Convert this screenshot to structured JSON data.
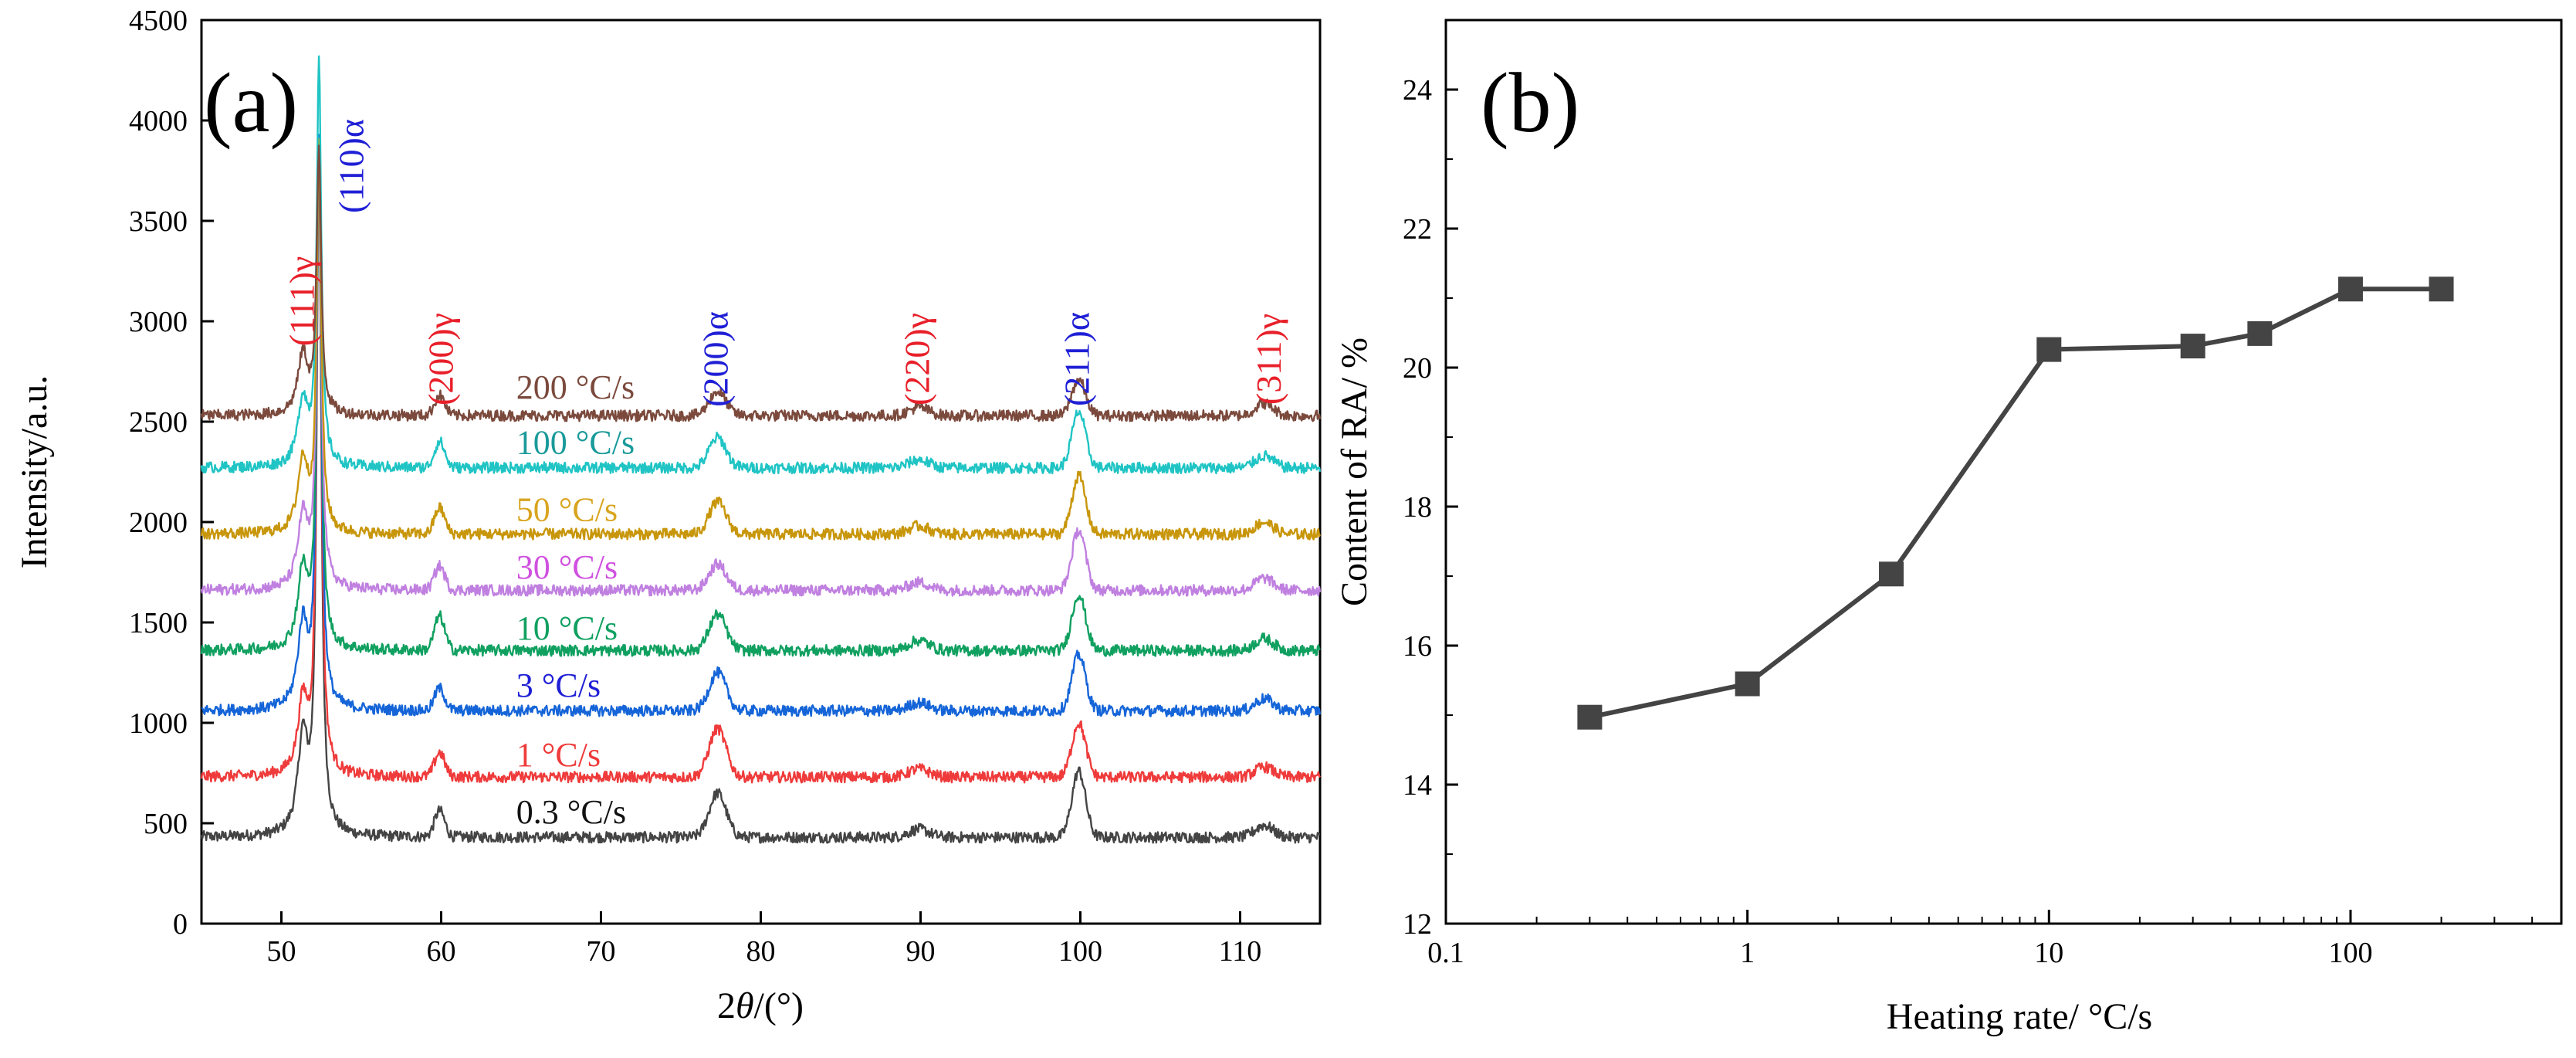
{
  "chart_data": [
    {
      "type": "line",
      "panel_label": "(a)",
      "xlabel_prefix": "2",
      "xlabel_symbol": "θ",
      "xlabel_suffix": "/(°)",
      "ylabel": "Intensity/a.u.",
      "xlim": [
        45,
        115
      ],
      "ylim": [
        0,
        4500
      ],
      "xticks": [
        50,
        60,
        70,
        80,
        90,
        100,
        110
      ],
      "yticks": [
        0,
        500,
        1000,
        1500,
        2000,
        2500,
        3000,
        3500,
        4000,
        4500
      ],
      "peak_labels": [
        {
          "text": "(111)γ",
          "x": 51.3,
          "color": "#e8202a"
        },
        {
          "text": "(110)α",
          "x": 54.4,
          "color": "#1f1fd6"
        },
        {
          "text": "(200)γ",
          "x": 60.0,
          "color": "#e8202a"
        },
        {
          "text": "(200)α",
          "x": 77.2,
          "color": "#1f1fd6"
        },
        {
          "text": "(220)γ",
          "x": 89.8,
          "color": "#e8202a"
        },
        {
          "text": "(211)α",
          "x": 99.8,
          "color": "#1f1fd6"
        },
        {
          "text": "(311)γ",
          "x": 111.8,
          "color": "#e8202a"
        }
      ],
      "series": [
        {
          "name": "0.3 °C/s",
          "baseline": 430,
          "color": "#444444",
          "label_color": "#111111",
          "peaks": {
            "g111": 480,
            "a110": 3400,
            "g200": 130,
            "a200": 220,
            "g220": 40,
            "a211": 330,
            "g311": 60
          }
        },
        {
          "name": "1 °C/s",
          "baseline": 730,
          "color": "#ef3b3b",
          "label_color": "#ef3b3b",
          "peaks": {
            "g111": 360,
            "a110": 3100,
            "g200": 120,
            "a200": 240,
            "g220": 40,
            "a211": 270,
            "g311": 50
          }
        },
        {
          "name": "3 °C/s",
          "baseline": 1060,
          "color": "#1565d8",
          "label_color": "#1f1fd6",
          "peaks": {
            "g111": 420,
            "a110": 2800,
            "g200": 110,
            "a200": 190,
            "g220": 40,
            "a211": 280,
            "g311": 60
          }
        },
        {
          "name": "10 °C/s",
          "baseline": 1360,
          "color": "#10a060",
          "label_color": "#10a060",
          "peaks": {
            "g111": 390,
            "a110": 2500,
            "g200": 170,
            "a200": 180,
            "g220": 50,
            "a211": 280,
            "g311": 60
          }
        },
        {
          "name": "30 °C/s",
          "baseline": 1660,
          "color": "#c080e0",
          "label_color": "#d050e0",
          "peaks": {
            "g111": 360,
            "a110": 2200,
            "g200": 120,
            "a200": 130,
            "g220": 40,
            "a211": 300,
            "g311": 60
          }
        },
        {
          "name": "50 °C/s",
          "baseline": 1940,
          "color": "#c8960a",
          "label_color": "#d9a520",
          "peaks": {
            "g111": 360,
            "a110": 1900,
            "g200": 130,
            "a200": 160,
            "g220": 40,
            "a211": 290,
            "g311": 60
          }
        },
        {
          "name": "100 °C/s",
          "baseline": 2270,
          "color": "#20c4c4",
          "label_color": "#1a9a9a",
          "peaks": {
            "g111": 330,
            "a110": 2000,
            "g200": 130,
            "a200": 150,
            "g220": 40,
            "a211": 280,
            "g311": 60
          }
        },
        {
          "name": "200 °C/s",
          "baseline": 2530,
          "color": "#7b4a3d",
          "label_color": "#7b4a3d",
          "peaks": {
            "g111": 300,
            "a110": 1300,
            "g200": 100,
            "a200": 120,
            "g220": 40,
            "a211": 180,
            "g311": 60
          }
        }
      ]
    },
    {
      "type": "line",
      "panel_label": "(b)",
      "xscale": "log",
      "xlabel": "Heating rate/ °C/s",
      "ylabel": "Content of RA/ %",
      "xlim": [
        0.1,
        500
      ],
      "ylim": [
        12,
        25
      ],
      "xticks": [
        0.1,
        1,
        10,
        100
      ],
      "xtick_labels": [
        "0.1",
        "1",
        "10",
        "100"
      ],
      "yticks": [
        12,
        14,
        16,
        18,
        20,
        22,
        24
      ],
      "series": [
        {
          "name": "Content of RA",
          "color": "#444444",
          "x": [
            0.3,
            1,
            3,
            10,
            30,
            50,
            100,
            200
          ],
          "y": [
            14.97,
            15.45,
            17.03,
            20.26,
            20.31,
            20.49,
            21.13,
            21.13
          ]
        }
      ]
    }
  ]
}
